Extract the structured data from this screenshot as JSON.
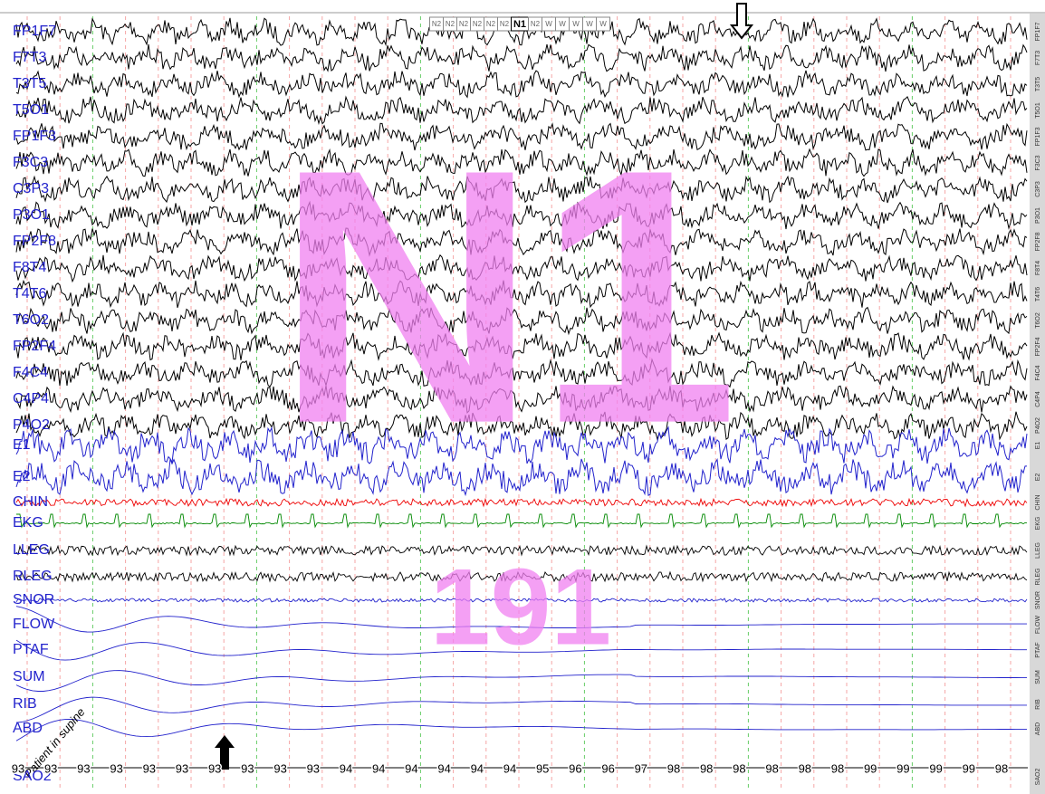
{
  "epoch_bar": [
    "N2",
    "N2",
    "N2",
    "N2",
    "N2",
    "N2",
    "N1",
    "N2",
    "W",
    "W",
    "W",
    "W",
    "W"
  ],
  "channels": [
    "FP1F7",
    "F7T3",
    "T3T5",
    "T5O1",
    "FP1F3",
    "F3C3",
    "C3P3",
    "P3O1",
    "FP2F8",
    "F8T4",
    "T4T6",
    "T6O2",
    "FP2F4",
    "F4C4",
    "C4P4",
    "P4O2",
    "E1",
    "E2",
    "CHIN",
    "EKG",
    "LLEG",
    "RLEG",
    "SNOR",
    "FLOW",
    "PTAF",
    "SUM",
    "RIB",
    "ABD",
    "SAO2"
  ],
  "stage_overlay": "N1",
  "epoch_number": "191",
  "annotation": "Patient in supine",
  "sao2_values": [
    93,
    93,
    93,
    93,
    93,
    93,
    93,
    93,
    93,
    93,
    94,
    94,
    94,
    94,
    94,
    94,
    95,
    96,
    96,
    97,
    98,
    98,
    98,
    98,
    98,
    98,
    99,
    99,
    99,
    99,
    98
  ]
}
